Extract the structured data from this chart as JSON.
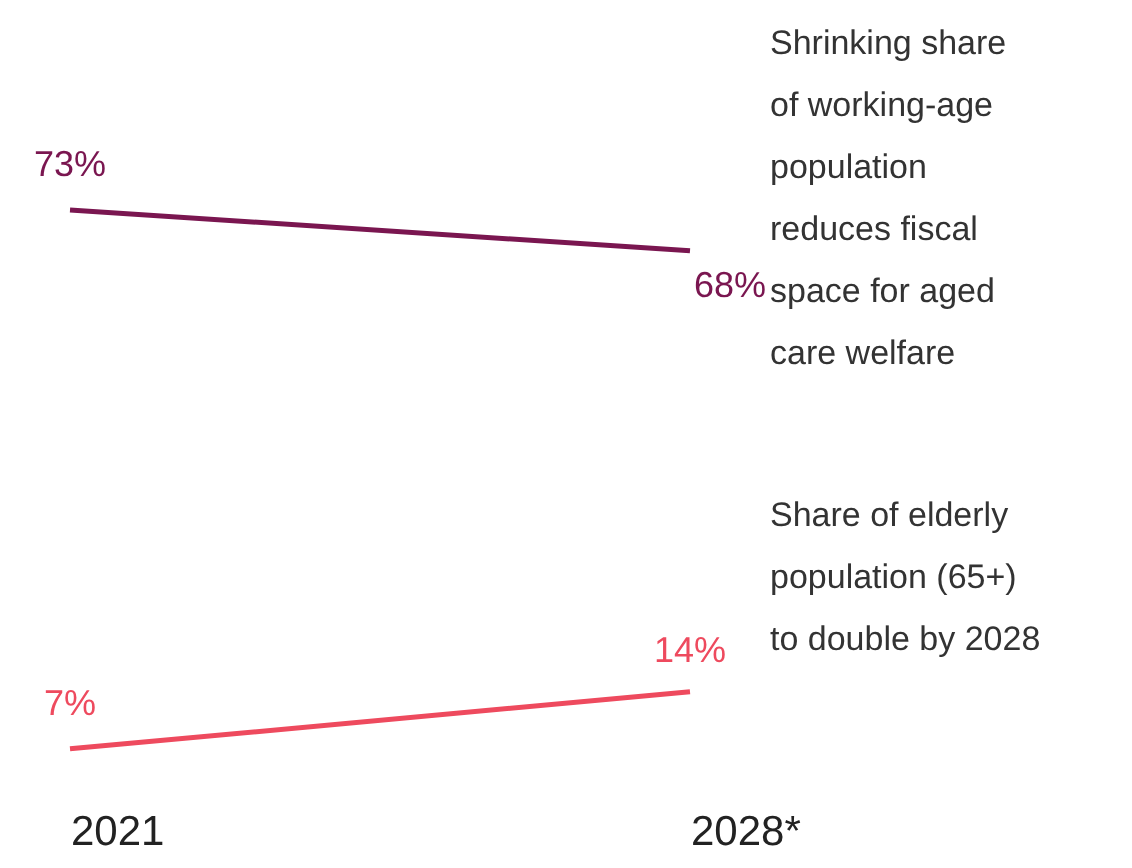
{
  "chart_data": {
    "type": "line",
    "categories": [
      "2021",
      "2028*"
    ],
    "series": [
      {
        "color": "#7a1650",
        "values": [
          73,
          68
        ],
        "value_labels": [
          "73%",
          "68%"
        ]
      },
      {
        "color": "#ee4a5e",
        "values": [
          7,
          14
        ],
        "value_labels": [
          "7%",
          "14%"
        ]
      }
    ],
    "annotations": [
      "Shrinking share of working-age population reduces fiscal space for aged care welfare",
      "Share of elderly population (65+) to double by 2028"
    ],
    "grid": false,
    "legend": false,
    "marker": "none",
    "line_style": "solid",
    "tick_labels": "x"
  }
}
